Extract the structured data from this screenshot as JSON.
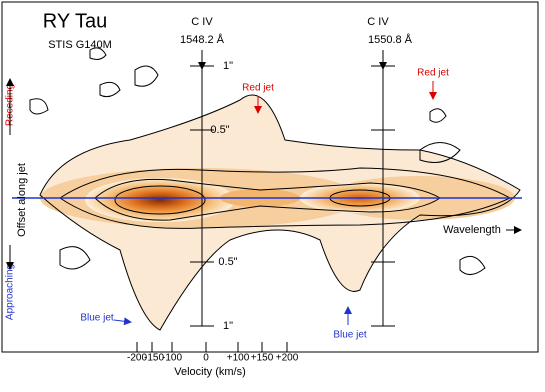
{
  "header": {
    "title": "RY Tau",
    "subtitle": "STIS G140M"
  },
  "lines": [
    {
      "label": "C IV",
      "wavelength": "1548.2 Å"
    },
    {
      "label": "C IV",
      "wavelength": "1550.8 Å"
    }
  ],
  "offsets": [
    "1\"",
    "0.5\"",
    "0.5\"",
    "1\""
  ],
  "annotations": {
    "red_jets": [
      "Red jet",
      "Red jet"
    ],
    "blue_jets": [
      "Blue jet",
      "Blue jet"
    ]
  },
  "axis": {
    "y_label": "Offset along jet",
    "receding": "Receding",
    "approaching": "Approaching",
    "x_direction": "Wavelength",
    "x_label": "Velocity (km/s)",
    "x_ticks": [
      "-200",
      "-150",
      "-100",
      "0",
      "+100",
      "+150",
      "+200"
    ]
  }
}
